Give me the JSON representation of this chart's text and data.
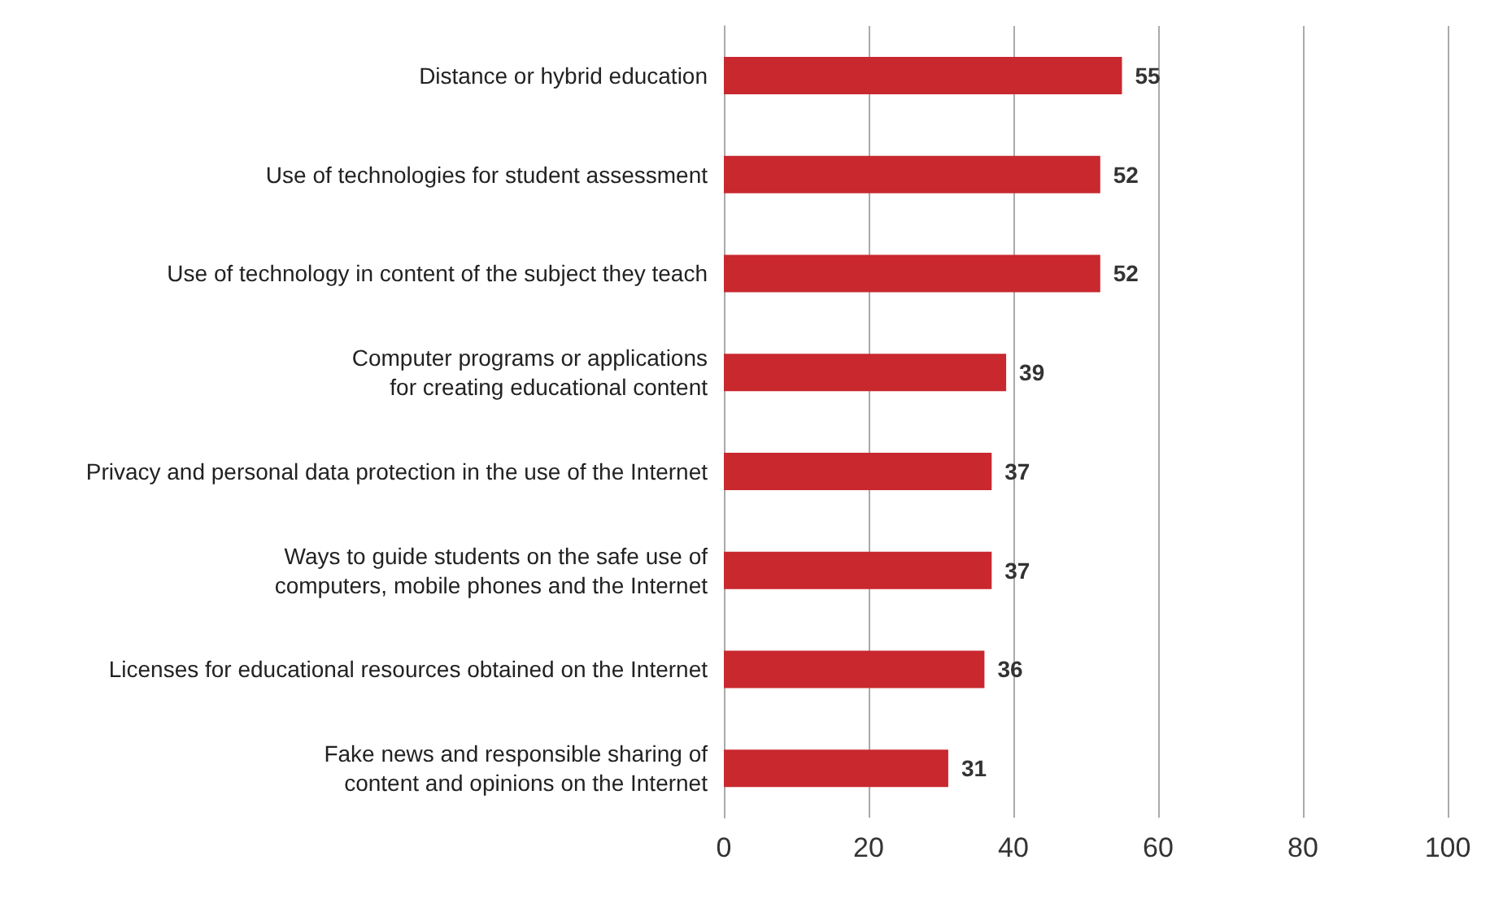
{
  "chart_data": {
    "type": "bar",
    "orientation": "horizontal",
    "categories": [
      "Distance or hybrid education",
      "Use of technologies for student assessment",
      "Use of technology in content of the subject they teach",
      "Computer programs or applications\nfor creating educational content",
      "Privacy and personal data protection in the use of the Internet",
      "Ways to guide students on the safe use of\ncomputers, mobile phones and the Internet",
      "Licenses for educational resources obtained on the Internet",
      "Fake news and responsible sharing of\ncontent and opinions on the Internet"
    ],
    "values": [
      55,
      52,
      52,
      39,
      37,
      37,
      36,
      31
    ],
    "color": "#c8282e",
    "xlim": [
      0,
      100
    ],
    "xticks": [
      0,
      20,
      40,
      60,
      80,
      100
    ],
    "grid": "x",
    "data_labels": true
  }
}
